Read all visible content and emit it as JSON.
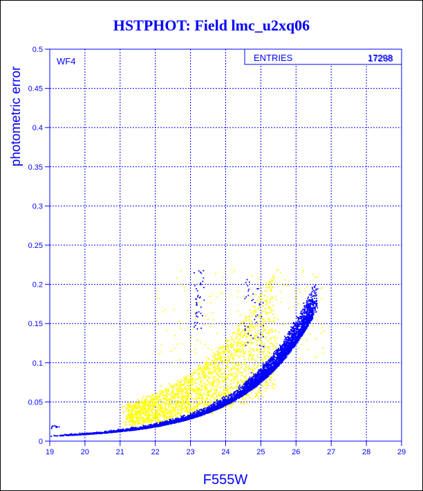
{
  "chart_data": {
    "type": "scatter",
    "title": "HSTPHOT: Field lmc_u2xq06",
    "panel_label": "WF4",
    "stats_label": "ENTRIES",
    "stats_values": [
      "17298",
      "17268"
    ],
    "xlabel": "F555W",
    "ylabel": "photometric error",
    "xlim": [
      19,
      29
    ],
    "ylim": [
      0,
      0.5
    ],
    "x_ticks": [
      "19",
      "20",
      "21",
      "22",
      "23",
      "24",
      "25",
      "26",
      "27",
      "28",
      "29"
    ],
    "y_ticks": [
      "0",
      "0.05",
      "0.1",
      "0.15",
      "0.2",
      "0.25",
      "0.3",
      "0.35",
      "0.4",
      "0.45",
      "0.5"
    ],
    "grid": true,
    "colors": {
      "axis": "#0000ff",
      "series_main": "#0000ff",
      "series_secondary": "#ffff00",
      "background": "#ffffff"
    },
    "series": [
      {
        "color": "#ffff00",
        "description_points": [
          [
            19.9,
            0.012
          ],
          [
            20.4,
            0.018
          ],
          [
            20.9,
            0.024
          ],
          [
            21.2,
            0.03
          ],
          [
            21.5,
            0.04
          ],
          [
            21.8,
            0.045
          ],
          [
            22.0,
            0.05
          ],
          [
            22.2,
            0.055
          ],
          [
            22.4,
            0.06
          ],
          [
            22.6,
            0.065
          ],
          [
            22.8,
            0.07
          ],
          [
            23.0,
            0.075
          ],
          [
            23.2,
            0.08
          ],
          [
            23.4,
            0.085
          ],
          [
            23.6,
            0.09
          ],
          [
            23.8,
            0.1
          ],
          [
            24.0,
            0.11
          ],
          [
            24.2,
            0.12
          ],
          [
            24.4,
            0.13
          ],
          [
            24.6,
            0.14
          ],
          [
            24.8,
            0.16
          ],
          [
            25.0,
            0.18
          ],
          [
            25.2,
            0.2
          ],
          [
            25.4,
            0.21
          ],
          [
            21.3,
            0.045
          ],
          [
            22.5,
            0.035
          ],
          [
            23.1,
            0.045
          ],
          [
            23.7,
            0.06
          ],
          [
            24.3,
            0.07
          ],
          [
            24.9,
            0.08
          ]
        ]
      },
      {
        "color": "#0000ff",
        "description_points": [
          [
            19.0,
            0.002
          ],
          [
            19.5,
            0.004
          ],
          [
            20.0,
            0.006
          ],
          [
            20.5,
            0.008
          ],
          [
            21.0,
            0.01
          ],
          [
            21.5,
            0.013
          ],
          [
            22.0,
            0.016
          ],
          [
            22.5,
            0.02
          ],
          [
            23.0,
            0.025
          ],
          [
            23.5,
            0.031
          ],
          [
            24.0,
            0.038
          ],
          [
            24.5,
            0.047
          ],
          [
            25.0,
            0.06
          ],
          [
            25.3,
            0.072
          ],
          [
            25.6,
            0.088
          ],
          [
            25.9,
            0.11
          ],
          [
            26.1,
            0.13
          ],
          [
            26.3,
            0.16
          ],
          [
            26.4,
            0.18
          ],
          [
            26.5,
            0.2
          ],
          [
            26.6,
            0.21
          ],
          [
            23.2,
            0.2
          ],
          [
            23.3,
            0.21
          ],
          [
            23.0,
            0.16
          ],
          [
            22.8,
            0.15
          ],
          [
            24.4,
            0.2
          ],
          [
            24.6,
            0.19
          ],
          [
            25.1,
            0.17
          ]
        ]
      }
    ]
  }
}
